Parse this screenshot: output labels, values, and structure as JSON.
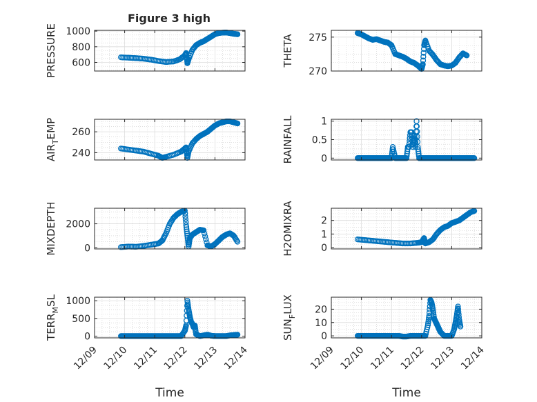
{
  "figure": {
    "title": "Figure 3 high",
    "marker_color": "#0072BD",
    "x_tick_labels": [
      "12/09",
      "12/10",
      "12/11",
      "12/12",
      "12/13",
      "12/14"
    ],
    "x_label": "Time"
  },
  "chart_data": [
    {
      "type": "scatter",
      "title": "Figure 3 high",
      "ylabel": "PRESSURE",
      "ylim": [
        490,
        1010
      ],
      "yticks": [
        600,
        800,
        1000
      ],
      "grid": true,
      "minor_grid": true,
      "x": [
        "12/09 21:00",
        "12/10 03:00",
        "12/10 09:00",
        "12/10 15:00",
        "12/10 21:00",
        "12/11 03:00",
        "12/11 09:00",
        "12/11 15:00",
        "12/11 20:00",
        "12/12 00:00",
        "12/12 01:00",
        "12/12 02:00",
        "12/12 03:00",
        "12/12 06:00",
        "12/12 09:00",
        "12/12 12:00",
        "12/12 15:00",
        "12/12 18:00",
        "12/12 21:00",
        "12/13 00:00",
        "12/13 03:00",
        "12/13 06:00",
        "12/13 09:00",
        "12/13 12:00",
        "12/13 15:00",
        "12/13 18:00"
      ],
      "y": [
        665,
        660,
        655,
        648,
        635,
        618,
        605,
        612,
        640,
        690,
        720,
        590,
        640,
        760,
        820,
        850,
        870,
        900,
        930,
        960,
        975,
        980,
        982,
        975,
        965,
        960
      ]
    },
    {
      "type": "scatter",
      "ylabel": "THETA",
      "ylim": [
        270,
        276
      ],
      "yticks": [
        270,
        275
      ],
      "grid": true,
      "minor_grid": true,
      "x": [
        "12/09 21:00",
        "12/10 00:00",
        "12/10 03:00",
        "12/10 06:00",
        "12/10 09:00",
        "12/10 12:00",
        "12/10 15:00",
        "12/10 18:00",
        "12/10 21:00",
        "12/11 00:00",
        "12/11 03:00",
        "12/11 06:00",
        "12/11 09:00",
        "12/11 12:00",
        "12/11 15:00",
        "12/11 18:00",
        "12/11 21:00",
        "12/12 00:00",
        "12/12 01:00",
        "12/12 02:00",
        "12/12 03:00",
        "12/12 06:00",
        "12/12 09:00",
        "12/12 12:00",
        "12/12 15:00",
        "12/12 18:00",
        "12/12 21:00",
        "12/13 00:00",
        "12/13 03:00",
        "12/13 06:00",
        "12/13 09:00",
        "12/13 12:00"
      ],
      "y": [
        275.6,
        275.4,
        275.1,
        274.8,
        274.6,
        274.7,
        274.5,
        274.3,
        274.2,
        273.8,
        272.5,
        272.3,
        272.1,
        271.8,
        271.4,
        271.2,
        270.8,
        270.3,
        271.0,
        273.8,
        274.5,
        273.0,
        272.4,
        271.6,
        271.0,
        270.8,
        270.7,
        270.8,
        271.2,
        272.0,
        272.6,
        272.3
      ]
    },
    {
      "type": "scatter",
      "ylabel": "AIR",
      "ylabel_sub": "T",
      "ylabel_rest": "EMP",
      "ylim": [
        233,
        272
      ],
      "yticks": [
        240,
        260
      ],
      "grid": true,
      "minor_grid": true,
      "x": [
        "12/09 21:00",
        "12/10 03:00",
        "12/10 09:00",
        "12/10 15:00",
        "12/10 21:00",
        "12/11 03:00",
        "12/11 06:00",
        "12/11 09:00",
        "12/11 15:00",
        "12/11 21:00",
        "12/12 00:00",
        "12/12 01:00",
        "12/12 02:00",
        "12/12 03:00",
        "12/12 06:00",
        "12/12 09:00",
        "12/12 12:00",
        "12/12 15:00",
        "12/12 18:00",
        "12/12 21:00",
        "12/13 00:00",
        "12/13 03:00",
        "12/13 06:00",
        "12/13 09:00",
        "12/13 12:00",
        "12/13 15:00",
        "12/13 18:00"
      ],
      "y": [
        244,
        243,
        242,
        241,
        239,
        237,
        235,
        236,
        238,
        241,
        244,
        245,
        235,
        241,
        249,
        253,
        256,
        258,
        260,
        263,
        266,
        268,
        269,
        270,
        270,
        269,
        268
      ]
    },
    {
      "type": "scatter",
      "ylabel": "RAINFALL",
      "ylim": [
        -0.05,
        1.05
      ],
      "yticks": [
        0,
        0.5,
        1
      ],
      "ytick_labels": [
        "0",
        "0.5",
        "1"
      ],
      "grid": true,
      "minor_grid": true,
      "x": [
        "12/09 21:00",
        "12/10 00:00",
        "12/10 03:00",
        "12/10 06:00",
        "12/10 09:00",
        "12/10 12:00",
        "12/10 15:00",
        "12/10 18:00",
        "12/10 21:00",
        "12/11 00:00",
        "12/11 01:00",
        "12/11 03:00",
        "12/11 06:00",
        "12/11 09:00",
        "12/11 12:00",
        "12/11 13:00",
        "12/11 14:00",
        "12/11 15:00",
        "12/11 16:00",
        "12/11 17:00",
        "12/11 18:00",
        "12/11 19:00",
        "12/11 20:00",
        "12/11 21:00",
        "12/11 22:00",
        "12/11 23:00",
        "12/12 00:00",
        "12/12 03:00",
        "12/12 06:00",
        "12/12 09:00",
        "12/12 12:00",
        "12/12 15:00",
        "12/12 18:00",
        "12/12 21:00",
        "12/13 00:00",
        "12/13 03:00",
        "12/13 06:00",
        "12/13 09:00",
        "12/13 12:00",
        "12/13 15:00",
        "12/13 18:00"
      ],
      "y": [
        0,
        0,
        0,
        0,
        0,
        0,
        0,
        0,
        0,
        0,
        0.3,
        0,
        0,
        0,
        0,
        0.3,
        0.3,
        0.7,
        0.7,
        0.3,
        0.6,
        0.3,
        1.0,
        0.3,
        0,
        0,
        0,
        0,
        0,
        0,
        0,
        0,
        0,
        0,
        0,
        0,
        0,
        0,
        0,
        0,
        0
      ]
    },
    {
      "type": "scatter",
      "ylabel": "MIXDEPTH",
      "ylim": [
        -100,
        3300
      ],
      "yticks": [
        0,
        2000
      ],
      "grid": true,
      "minor_grid": true,
      "x": [
        "12/09 21:00",
        "12/10 03:00",
        "12/10 09:00",
        "12/10 15:00",
        "12/10 21:00",
        "12/11 03:00",
        "12/11 06:00",
        "12/11 09:00",
        "12/11 12:00",
        "12/11 15:00",
        "12/11 18:00",
        "12/11 21:00",
        "12/12 00:00",
        "12/12 01:00",
        "12/12 02:00",
        "12/12 03:00",
        "12/12 04:00",
        "12/12 06:00",
        "12/12 09:00",
        "12/12 12:00",
        "12/12 15:00",
        "12/12 18:00",
        "12/12 21:00",
        "12/13 00:00",
        "12/13 03:00",
        "12/13 06:00",
        "12/13 09:00",
        "12/13 12:00",
        "12/13 15:00",
        "12/13 18:00"
      ],
      "y": [
        50,
        100,
        80,
        150,
        250,
        350,
        600,
        1200,
        2000,
        2500,
        2800,
        3000,
        3100,
        1900,
        1000,
        100,
        800,
        1100,
        1300,
        1500,
        1450,
        200,
        100,
        300,
        600,
        900,
        1100,
        1200,
        1000,
        500
      ]
    },
    {
      "type": "scatter",
      "ylabel": "H2OMIXRA",
      "ylim": [
        -0.1,
        2.9
      ],
      "yticks": [
        0,
        1,
        2
      ],
      "grid": true,
      "minor_grid": true,
      "x": [
        "12/09 21:00",
        "12/10 03:00",
        "12/10 09:00",
        "12/10 15:00",
        "12/10 21:00",
        "12/11 03:00",
        "12/11 09:00",
        "12/11 15:00",
        "12/11 21:00",
        "12/12 00:00",
        "12/12 02:00",
        "12/12 03:00",
        "12/12 06:00",
        "12/12 09:00",
        "12/12 12:00",
        "12/12 15:00",
        "12/12 18:00",
        "12/12 21:00",
        "12/13 00:00",
        "12/13 03:00",
        "12/13 06:00",
        "12/13 09:00",
        "12/13 12:00",
        "12/13 15:00",
        "12/13 18:00"
      ],
      "y": [
        0.6,
        0.55,
        0.5,
        0.45,
        0.4,
        0.35,
        0.3,
        0.3,
        0.35,
        0.4,
        0.7,
        0.3,
        0.4,
        0.6,
        1.0,
        1.3,
        1.5,
        1.6,
        1.8,
        1.9,
        2.0,
        2.2,
        2.4,
        2.6,
        2.7
      ]
    },
    {
      "type": "scatter",
      "ylabel": "TERR",
      "ylabel_sub": "M",
      "ylabel_rest": "SL",
      "ylim": [
        -50,
        1100
      ],
      "yticks": [
        0,
        500,
        1000
      ],
      "grid": true,
      "minor_grid": true,
      "x": [
        "12/09 21:00",
        "12/10 00:00",
        "12/10 03:00",
        "12/10 06:00",
        "12/10 09:00",
        "12/10 12:00",
        "12/10 15:00",
        "12/10 18:00",
        "12/10 21:00",
        "12/11 00:00",
        "12/11 03:00",
        "12/11 06:00",
        "12/11 09:00",
        "12/11 12:00",
        "12/11 15:00",
        "12/11 18:00",
        "12/11 21:00",
        "12/12 00:00",
        "12/12 01:00",
        "12/12 02:00",
        "12/12 03:00",
        "12/12 04:00",
        "12/12 05:00",
        "12/12 06:00",
        "12/12 07:00",
        "12/12 08:00",
        "12/12 09:00",
        "12/12 12:00",
        "12/12 15:00",
        "12/12 18:00",
        "12/12 21:00",
        "12/13 00:00",
        "12/13 03:00",
        "12/13 06:00",
        "12/13 09:00",
        "12/13 12:00",
        "12/13 15:00",
        "12/13 18:00"
      ],
      "y": [
        0,
        0,
        0,
        0,
        0,
        0,
        0,
        0,
        0,
        0,
        0,
        0,
        0,
        0,
        0,
        0,
        0,
        150,
        300,
        1000,
        750,
        550,
        400,
        350,
        250,
        300,
        50,
        0,
        20,
        40,
        10,
        0,
        0,
        0,
        0,
        20,
        30,
        40
      ]
    },
    {
      "type": "scatter",
      "ylabel": "SUN",
      "ylabel_sub": "F",
      "ylabel_rest": "LUX",
      "ylim": [
        -1.5,
        29
      ],
      "yticks": [
        0,
        10,
        20
      ],
      "grid": true,
      "minor_grid": true,
      "x": [
        "12/09 21:00",
        "12/10 00:00",
        "12/10 03:00",
        "12/10 06:00",
        "12/10 09:00",
        "12/10 12:00",
        "12/10 15:00",
        "12/10 18:00",
        "12/10 21:00",
        "12/11 00:00",
        "12/11 03:00",
        "12/11 06:00",
        "12/11 09:00",
        "12/11 12:00",
        "12/11 15:00",
        "12/11 18:00",
        "12/11 21:00",
        "12/12 00:00",
        "12/12 03:00",
        "12/12 05:00",
        "12/12 06:00",
        "12/12 07:00",
        "12/12 08:00",
        "12/12 09:00",
        "12/12 10:00",
        "12/12 11:00",
        "12/12 12:00",
        "12/12 13:00",
        "12/12 14:00",
        "12/12 15:00",
        "12/12 18:00",
        "12/12 21:00",
        "12/13 00:00",
        "12/13 02:00",
        "12/13 03:00",
        "12/13 04:00",
        "12/13 05:00",
        "12/13 06:00",
        "12/13 07:00"
      ],
      "y": [
        0,
        0,
        0,
        0,
        0,
        0,
        0,
        0,
        0,
        0,
        0,
        0,
        -0.5,
        -0.5,
        0,
        0,
        0,
        0,
        0,
        8,
        15,
        27,
        25,
        20,
        13,
        11,
        9,
        7,
        5,
        3,
        0,
        0,
        0,
        5,
        10,
        15,
        22,
        12,
        7
      ]
    }
  ]
}
